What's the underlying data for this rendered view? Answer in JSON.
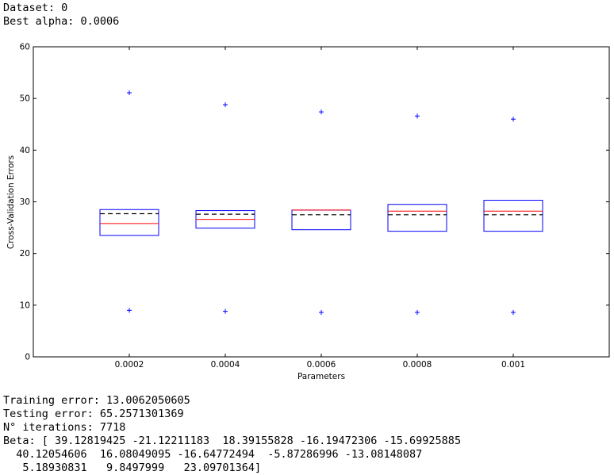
{
  "header": {
    "dataset_line": "Dataset: 0",
    "alpha_line": "Best alpha: 0.0006"
  },
  "footer": {
    "training_line": "Training error: 13.0062050605",
    "testing_line": "Testing error: 65.2571301369",
    "iterations_line": "N° iterations: 7718",
    "beta_line1": "Beta: [ 39.12819425 -21.12211183  18.39155828 -16.19472306 -15.69925885",
    "beta_line2": "  40.12054606  16.08049095 -16.64772494  -5.87286996 -13.08148087",
    "beta_line3": "   5.18930831   9.8497999   23.09701364]"
  },
  "chart_data": {
    "type": "box",
    "xlabel": "Parameters",
    "ylabel": "Cross-Validation Errors",
    "categories": [
      "0.0002",
      "0.0004",
      "0.0006",
      "0.0008",
      "0.001"
    ],
    "ylim": [
      0,
      60
    ],
    "yticks": [
      0,
      10,
      20,
      30,
      40,
      50,
      60
    ],
    "grid": false,
    "boxes": [
      {
        "q1": 23.5,
        "median": 25.8,
        "q3": 28.5,
        "mean": 27.7,
        "whisker_low": 9.0,
        "whisker_high": 51.1
      },
      {
        "q1": 24.9,
        "median": 26.6,
        "q3": 28.3,
        "mean": 27.6,
        "whisker_low": 8.8,
        "whisker_high": 48.8
      },
      {
        "q1": 24.6,
        "median": 28.4,
        "q3": 28.4,
        "mean": 27.5,
        "whisker_low": 8.6,
        "whisker_high": 47.4
      },
      {
        "q1": 24.3,
        "median": 28.2,
        "q3": 29.5,
        "mean": 27.5,
        "whisker_low": 8.6,
        "whisker_high": 46.6
      },
      {
        "q1": 24.3,
        "median": 28.2,
        "q3": 30.3,
        "mean": 27.5,
        "whisker_low": 8.6,
        "whisker_high": 46.0
      }
    ],
    "colors": {
      "box": "#0000ff",
      "median": "#ff0000",
      "mean": "#000000",
      "whisker_marker": "#0000ff",
      "axes": "#000000"
    }
  }
}
